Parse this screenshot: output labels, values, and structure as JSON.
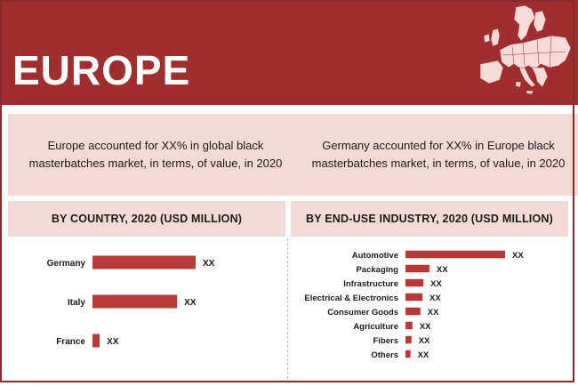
{
  "header": {
    "title": "EUROPE"
  },
  "stats": {
    "left": "Europe accounted for XX% in global black masterbatches market, in terms, of value, in 2020",
    "right": "Germany accounted for XX% in Europe black masterbatches market, in terms, of value, in 2020"
  },
  "sections": {
    "country_title": "BY COUNTRY, 2020 (USD MILLION)",
    "industry_title": "BY END-USE INDUSTRY, 2020 (USD MILLION)"
  },
  "colors": {
    "accent": "#a12e2e",
    "bar": "#b83a36",
    "panel": "#f4d9d6"
  },
  "chart_data": [
    {
      "type": "bar",
      "orientation": "horizontal",
      "title": "BY COUNTRY, 2020 (USD MILLION)",
      "categories": [
        "Germany",
        "Italy",
        "France"
      ],
      "values": [
        100,
        82,
        7
      ],
      "value_labels": [
        "XX",
        "XX",
        "XX"
      ],
      "grid": false
    },
    {
      "type": "bar",
      "orientation": "horizontal",
      "title": "BY END-USE INDUSTRY, 2020 (USD MILLION)",
      "categories": [
        "Automotive",
        "Packaging",
        "Infrastructure",
        "Electrical & Electronics",
        "Consumer Goods",
        "Agriculture",
        "Fibers",
        "Others"
      ],
      "values": [
        100,
        24,
        18,
        17,
        15,
        7,
        6,
        5
      ],
      "value_labels": [
        "XX",
        "XX",
        "XX",
        "XX",
        "XX",
        "XX",
        "XX",
        "XX"
      ],
      "grid": false
    }
  ]
}
